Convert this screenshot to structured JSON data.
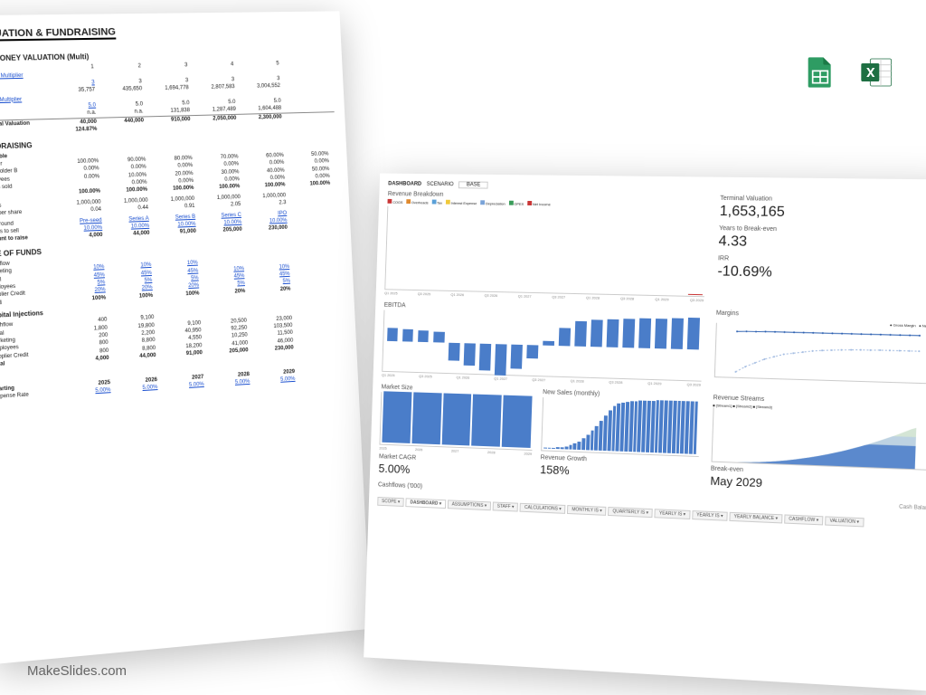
{
  "footer": "MakeSlides.com",
  "sheet1": {
    "title": "VALUATION & FUNDRAISING",
    "pre_money": {
      "heading": "PRE-MONEY VALUATION (Multi)",
      "col_headers": [
        "1",
        "2",
        "3",
        "4",
        "5"
      ],
      "revenue_mult": {
        "label": "Revenue Multiplier",
        "mult": [
          "3",
          "3",
          "3",
          "3",
          "3"
        ],
        "vals": [
          "35,757",
          "435,650",
          "1,694,778",
          "2,807,583",
          "3,004,552"
        ]
      },
      "ebitda_mult": {
        "label": "EBITDA Multiplier",
        "mult": [
          "5.0",
          "5.0",
          "5.0",
          "5.0",
          "5.0"
        ],
        "vals": [
          "n.a.",
          "n.a.",
          "131,838",
          "1,287,489",
          "1,604,488"
        ]
      },
      "fin_val": {
        "label": "Financial Valuation",
        "vals": [
          "40,000",
          "440,000",
          "910,000",
          "2,050,000",
          "2,300,000"
        ]
      },
      "rri": {
        "label": "RRI",
        "val": "124.87%"
      }
    },
    "fundraising": {
      "heading": "FUNDRAISING",
      "cap_table": "Cap Table",
      "rows": [
        {
          "lbl": "Founder",
          "v": [
            "100.00%",
            "90.00%",
            "80.00%",
            "70.00%",
            "60.00%",
            "50.00%"
          ]
        },
        {
          "lbl": "Shareholder B",
          "v": [
            "0.00%",
            "0.00%",
            "0.00%",
            "0.00%",
            "0.00%",
            "0.00%"
          ]
        },
        {
          "lbl": "Employees",
          "v": [
            "0.00%",
            "10.00%",
            "20.00%",
            "30.00%",
            "40.00%",
            "50.00%"
          ]
        },
        {
          "lbl": "Shares sold",
          "v": [
            "",
            "0.00%",
            "0.00%",
            "0.00%",
            "0.00%",
            "0.00%"
          ]
        },
        {
          "lbl": "Total",
          "v": [
            "100.00%",
            "100.00%",
            "100.00%",
            "100.00%",
            "100.00%",
            "100.00%"
          ],
          "bold": true
        }
      ],
      "shares": [
        {
          "lbl": "Shares",
          "v": [
            "1,000,000",
            "1,000,000",
            "1,000,000",
            "1,000,000",
            "1,000,000"
          ]
        },
        {
          "lbl": "Price per share",
          "v": [
            "0.04",
            "0.44",
            "0.91",
            "2.05",
            "2.3"
          ]
        }
      ],
      "round": [
        {
          "lbl": "Seed round",
          "v": [
            "Pre-seed",
            "Series A",
            "Series B",
            "Series C",
            "IPO"
          ],
          "link": true
        },
        {
          "lbl": "Shares to sell",
          "v": [
            "10.00%",
            "10.00%",
            "10.00%",
            "10.00%",
            "10.00%"
          ],
          "link": true
        },
        {
          "lbl": "Amount to raise",
          "v": [
            "4,000",
            "44,000",
            "91,000",
            "205,000",
            "230,000"
          ],
          "bold": true
        }
      ]
    },
    "use_of_funds": {
      "heading": "USE OF FUNDS",
      "rows": [
        {
          "lbl": "Cashflow",
          "v": [
            "",
            "",
            "",
            "",
            ""
          ]
        },
        {
          "lbl": "Marketing",
          "v": [
            "10%",
            "10%",
            "10%",
            "",
            ""
          ],
          "link": true
        },
        {
          "lbl": "Legal",
          "v": [
            "45%",
            "45%",
            "45%",
            "10%",
            "10%"
          ],
          "link": true
        },
        {
          "lbl": "Employees",
          "v": [
            "5%",
            "5%",
            "5%",
            "45%",
            "45%"
          ],
          "link": true
        },
        {
          "lbl": "Supplier Credit",
          "v": [
            "20%",
            "20%",
            "20%",
            "5%",
            "5%"
          ],
          "link": true
        },
        {
          "lbl": "Total",
          "v": [
            "100%",
            "100%",
            "100%",
            "20%",
            "20%"
          ],
          "bold": true
        }
      ],
      "injections": {
        "heading": "Capital Injections",
        "rows": [
          {
            "lbl": "Cashflow",
            "v": [
              "400",
              "9,100",
              "",
              "",
              ""
            ]
          },
          {
            "lbl": "Legal",
            "v": [
              "1,800",
              "19,800",
              "9,100",
              "20,500",
              "23,000"
            ]
          },
          {
            "lbl": "Marketing",
            "v": [
              "200",
              "2,200",
              "40,950",
              "92,250",
              "103,500"
            ]
          },
          {
            "lbl": "Employees",
            "v": [
              "800",
              "8,800",
              "4,550",
              "10,250",
              "11,500"
            ]
          },
          {
            "lbl": "Supplier Credit",
            "v": [
              "800",
              "8,800",
              "18,200",
              "41,000",
              "46,000"
            ]
          },
          {
            "lbl": "Total",
            "v": [
              "4,000",
              "44,000",
              "91,000",
              "205,000",
              "230,000"
            ],
            "bold": true
          }
        ]
      }
    },
    "rates": {
      "heading": "C",
      "starting": "Starting",
      "years": [
        "2025",
        "2026",
        "2027",
        "2028",
        "2029"
      ],
      "exp_rate": {
        "lbl": "Expense Rate",
        "v": [
          "5.00%",
          "5.00%",
          "5.00%",
          "5.00%",
          "5.00%"
        ]
      }
    }
  },
  "sheet2": {
    "dashboard_label": "DASHBOARD",
    "scenario_label": "SCENARIO",
    "scenario_value": "BASE",
    "revenue_breakdown": {
      "title": "Revenue Breakdown",
      "legend": [
        "COGS",
        "Overheads",
        "Tax",
        "Interest Expense",
        "Depreciation",
        "OPEX",
        "Net Income"
      ],
      "legend_colors": [
        "#c93636",
        "#e08a2e",
        "#5aa0d8",
        "#f0c93a",
        "#7aa3d8",
        "#3a9c5a",
        "#c93636"
      ],
      "ymax": 1500000,
      "bars": [
        {
          "r": 60,
          "g": 10
        },
        {
          "r": 90,
          "g": 12
        },
        {
          "r": 130,
          "g": 14
        },
        {
          "r": 170,
          "g": 15
        },
        {
          "r": 210,
          "g": 15
        },
        {
          "r": 260,
          "g": 16
        },
        {
          "r": 320,
          "g": 17
        },
        {
          "r": 380,
          "g": 17
        },
        {
          "r": 440,
          "g": 18
        },
        {
          "r": 520,
          "g": 18
        },
        {
          "r": 600,
          "g": 19
        },
        {
          "r": 680,
          "g": 19
        },
        {
          "r": 760,
          "g": 20
        },
        {
          "r": 840,
          "g": 20
        },
        {
          "r": 920,
          "g": 20
        },
        {
          "r": 1000,
          "g": 21
        },
        {
          "r": 1080,
          "g": 21
        },
        {
          "r": 1140,
          "g": 22
        },
        {
          "r": 1200,
          "g": 22
        },
        {
          "r": 1260,
          "g": 22
        }
      ],
      "xlabels": [
        "Q1 2025",
        "Q3 2025",
        "Q1 2026",
        "Q3 2026",
        "Q1 2027",
        "Q3 2027",
        "Q1 2028",
        "Q3 2028",
        "Q1 2029",
        "Q3 2029"
      ]
    },
    "kpis": {
      "terminal": {
        "label": "Terminal Valuation",
        "val": "1,653,165"
      },
      "breakeven_years": {
        "label": "Years to Break-even",
        "val": "4.33"
      },
      "irr": {
        "label": "IRR",
        "val": "-10.69%"
      }
    },
    "ebitda": {
      "title": "EBITDA",
      "bars": [
        30,
        28,
        26,
        24,
        -40,
        -50,
        -60,
        -70,
        -55,
        -30,
        10,
        40,
        55,
        60,
        62,
        64,
        65,
        66,
        68,
        70
      ],
      "color": "#4a7dc9",
      "xlabels": [
        "Q1 2025",
        "Q3 2025",
        "Q1 2026",
        "Q1 2027",
        "Q3 2027",
        "Q1 2028",
        "Q3 2028",
        "Q1 2029",
        "Q3 2029"
      ]
    },
    "margins": {
      "title": "Margins",
      "legend": [
        "Gross Margin",
        "Net Margin"
      ],
      "gross": [
        70,
        71,
        71,
        72,
        72,
        72,
        72,
        72,
        72,
        72,
        72,
        72,
        72,
        72,
        72,
        72,
        72,
        72,
        72,
        72
      ],
      "net": [
        -80,
        -60,
        -45,
        -30,
        -20,
        -10,
        -5,
        0,
        5,
        8,
        10,
        12,
        13,
        14,
        14,
        15,
        15,
        15,
        15,
        15
      ],
      "color1": "#2b5fb0",
      "color2": "#9fb9e0"
    },
    "market_size": {
      "title": "Market Size",
      "bars": [
        100,
        100,
        100,
        100,
        100
      ],
      "labels": [
        "2025",
        "2026",
        "2027",
        "2028",
        "2029"
      ],
      "color": "#4a7dc9",
      "cagr_label": "Market CAGR",
      "cagr": "5.00%"
    },
    "new_sales": {
      "title": "New Sales (monthly)",
      "data": [
        1,
        1,
        2,
        3,
        4,
        6,
        9,
        13,
        18,
        25,
        33,
        42,
        52,
        63,
        74,
        85,
        95,
        100,
        103,
        105,
        106,
        107,
        108,
        108,
        109,
        109,
        110,
        110,
        110,
        110,
        110,
        110,
        110,
        110,
        110,
        110
      ],
      "color": "#4a7dc9",
      "growth_label": "Revenue Growth",
      "growth": "158%"
    },
    "revenue_streams": {
      "title": "Revenue Streams",
      "legend": [
        "[Stream1]",
        "[Stream2]",
        "[Stream3]"
      ],
      "colors": [
        "#7fb37f",
        "#8fb8d8",
        "#4a7dc9"
      ]
    },
    "breakeven": {
      "label": "Break-even",
      "val": "May 2029"
    },
    "cashflows_label": "Cashflows ('000)",
    "cash_balance_label": "Cash Balance",
    "tabs": [
      "SCOPE",
      "DASHBOARD",
      "ASSUMPTIONS",
      "STAFF",
      "CALCULATIONS",
      "MONTHLY IS",
      "QUARTERLY IS",
      "YEARLY IS",
      "YEARLY IS",
      "YEARLY BALANCE",
      "CASHFLOW",
      "VALUATION"
    ],
    "active_tab": 1
  }
}
